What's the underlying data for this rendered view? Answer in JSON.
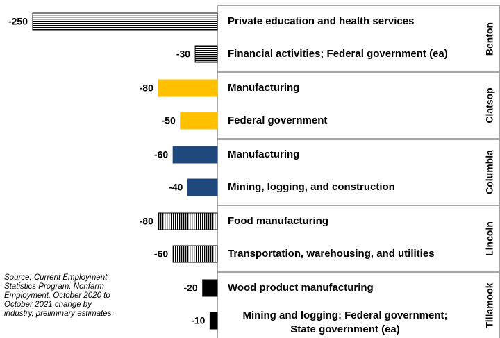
{
  "chart_data": {
    "type": "bar",
    "orientation": "horizontal",
    "xlim": [
      -250,
      0
    ],
    "note": "Source: Current Employment Statistics Program, Nonfarm Employment, October 2020 to October 2021 change by industry, preliminary estimates.",
    "series": [
      {
        "name": "Benton",
        "color": "#000000",
        "pattern": "horizontal-stripes",
        "categories": [
          "Private education and health services",
          "Financial activities; Federal government (ea)"
        ],
        "values": [
          -250,
          -30
        ]
      },
      {
        "name": "Clatsop",
        "color": "#FFC000",
        "pattern": "solid",
        "categories": [
          "Manufacturing",
          "Federal government"
        ],
        "values": [
          -80,
          -50
        ]
      },
      {
        "name": "Columbia",
        "color": "#1F497D",
        "pattern": "solid",
        "categories": [
          "Manufacturing",
          "Mining, logging, and construction"
        ],
        "values": [
          -60,
          -40
        ]
      },
      {
        "name": "Lincoln",
        "color": "#000000",
        "pattern": "vertical-stripes",
        "categories": [
          "Food manufacturing",
          "Transportation, warehousing, and utilities"
        ],
        "values": [
          -80,
          -60
        ]
      },
      {
        "name": "Tillamook",
        "color": "#000000",
        "pattern": "solid",
        "categories": [
          "Wood product manufacturing",
          [
            "Mining and logging; Federal government;",
            "State government (ea)"
          ]
        ],
        "values": [
          -20,
          -10
        ]
      }
    ]
  }
}
